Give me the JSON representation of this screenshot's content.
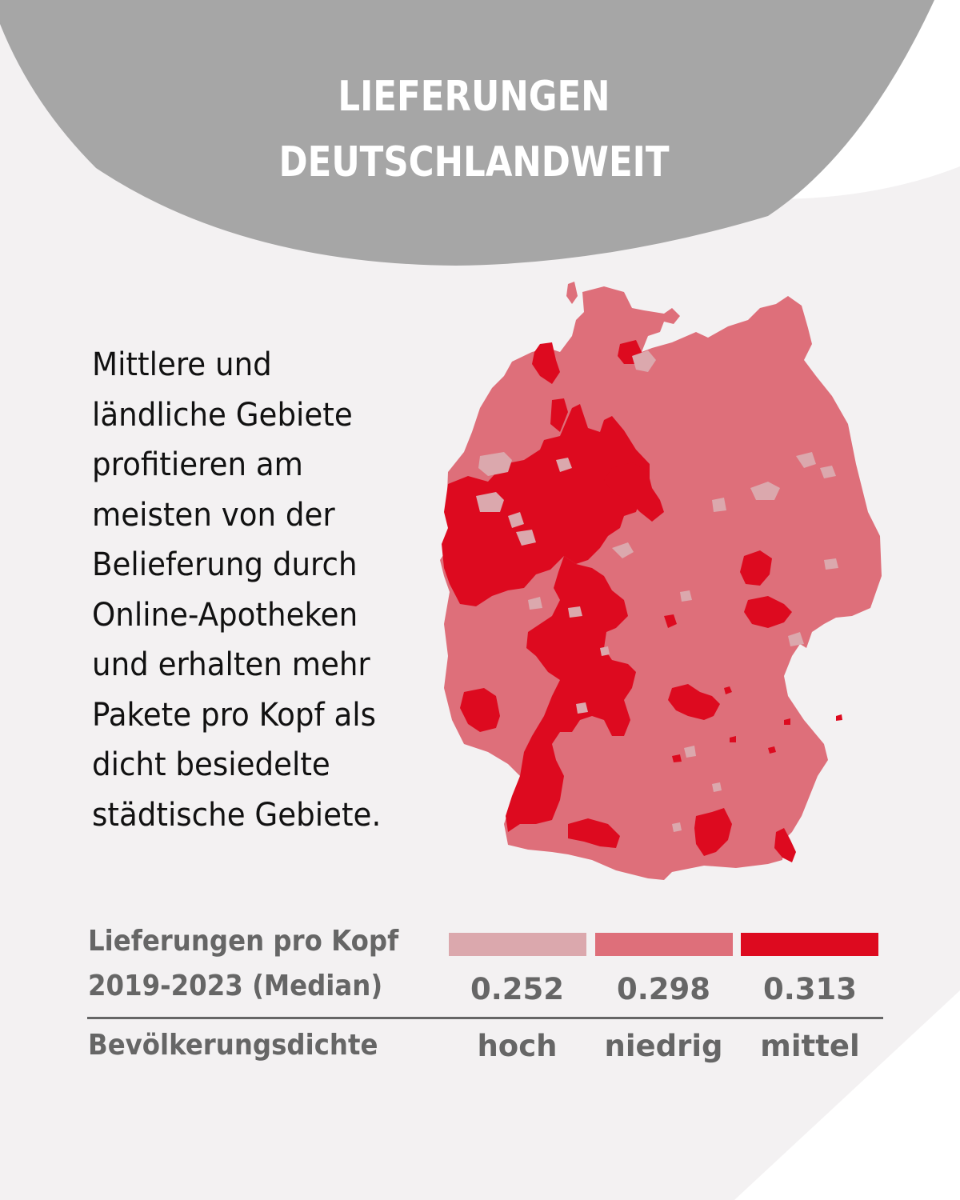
{
  "header": {
    "title_line1": "LIEFERUNGEN",
    "title_line2": "DEUTSCHLANDWEIT"
  },
  "description": {
    "lines": [
      "Mittlere und",
      "ländliche Gebiete",
      "profitieren am",
      "meisten von der",
      "Belieferung durch",
      "Online-Apotheken",
      "und erhalten mehr",
      "Pakete pro Kopf als",
      "dicht besiedelte",
      "städtische Gebiete."
    ]
  },
  "colors": {
    "background": "#f3f1f2",
    "header_blob": "#a6a6a6",
    "hoch": "#dba8ad",
    "niedrig": "#de6f7a",
    "mittel": "#dd0a1f",
    "text_dark": "#111111",
    "text_gray": "#666666"
  },
  "chart_data": {
    "type": "choropleth",
    "title": "LIEFERUNGEN DEUTSCHLANDWEIT",
    "region": "Deutschland",
    "legend": {
      "measure_label_line1": "Lieferungen pro Kopf",
      "measure_label_line2": "2019-2023 (Median)",
      "category_label": "Bevölkerungsdichte",
      "placement": "bottom"
    },
    "categories": [
      {
        "name": "hoch",
        "value": 0.252,
        "value_label": "0.252",
        "color": "#dba8ad"
      },
      {
        "name": "niedrig",
        "value": 0.298,
        "value_label": "0.298",
        "color": "#de6f7a"
      },
      {
        "name": "mittel",
        "value": 0.313,
        "value_label": "0.313",
        "color": "#dd0a1f"
      }
    ]
  }
}
